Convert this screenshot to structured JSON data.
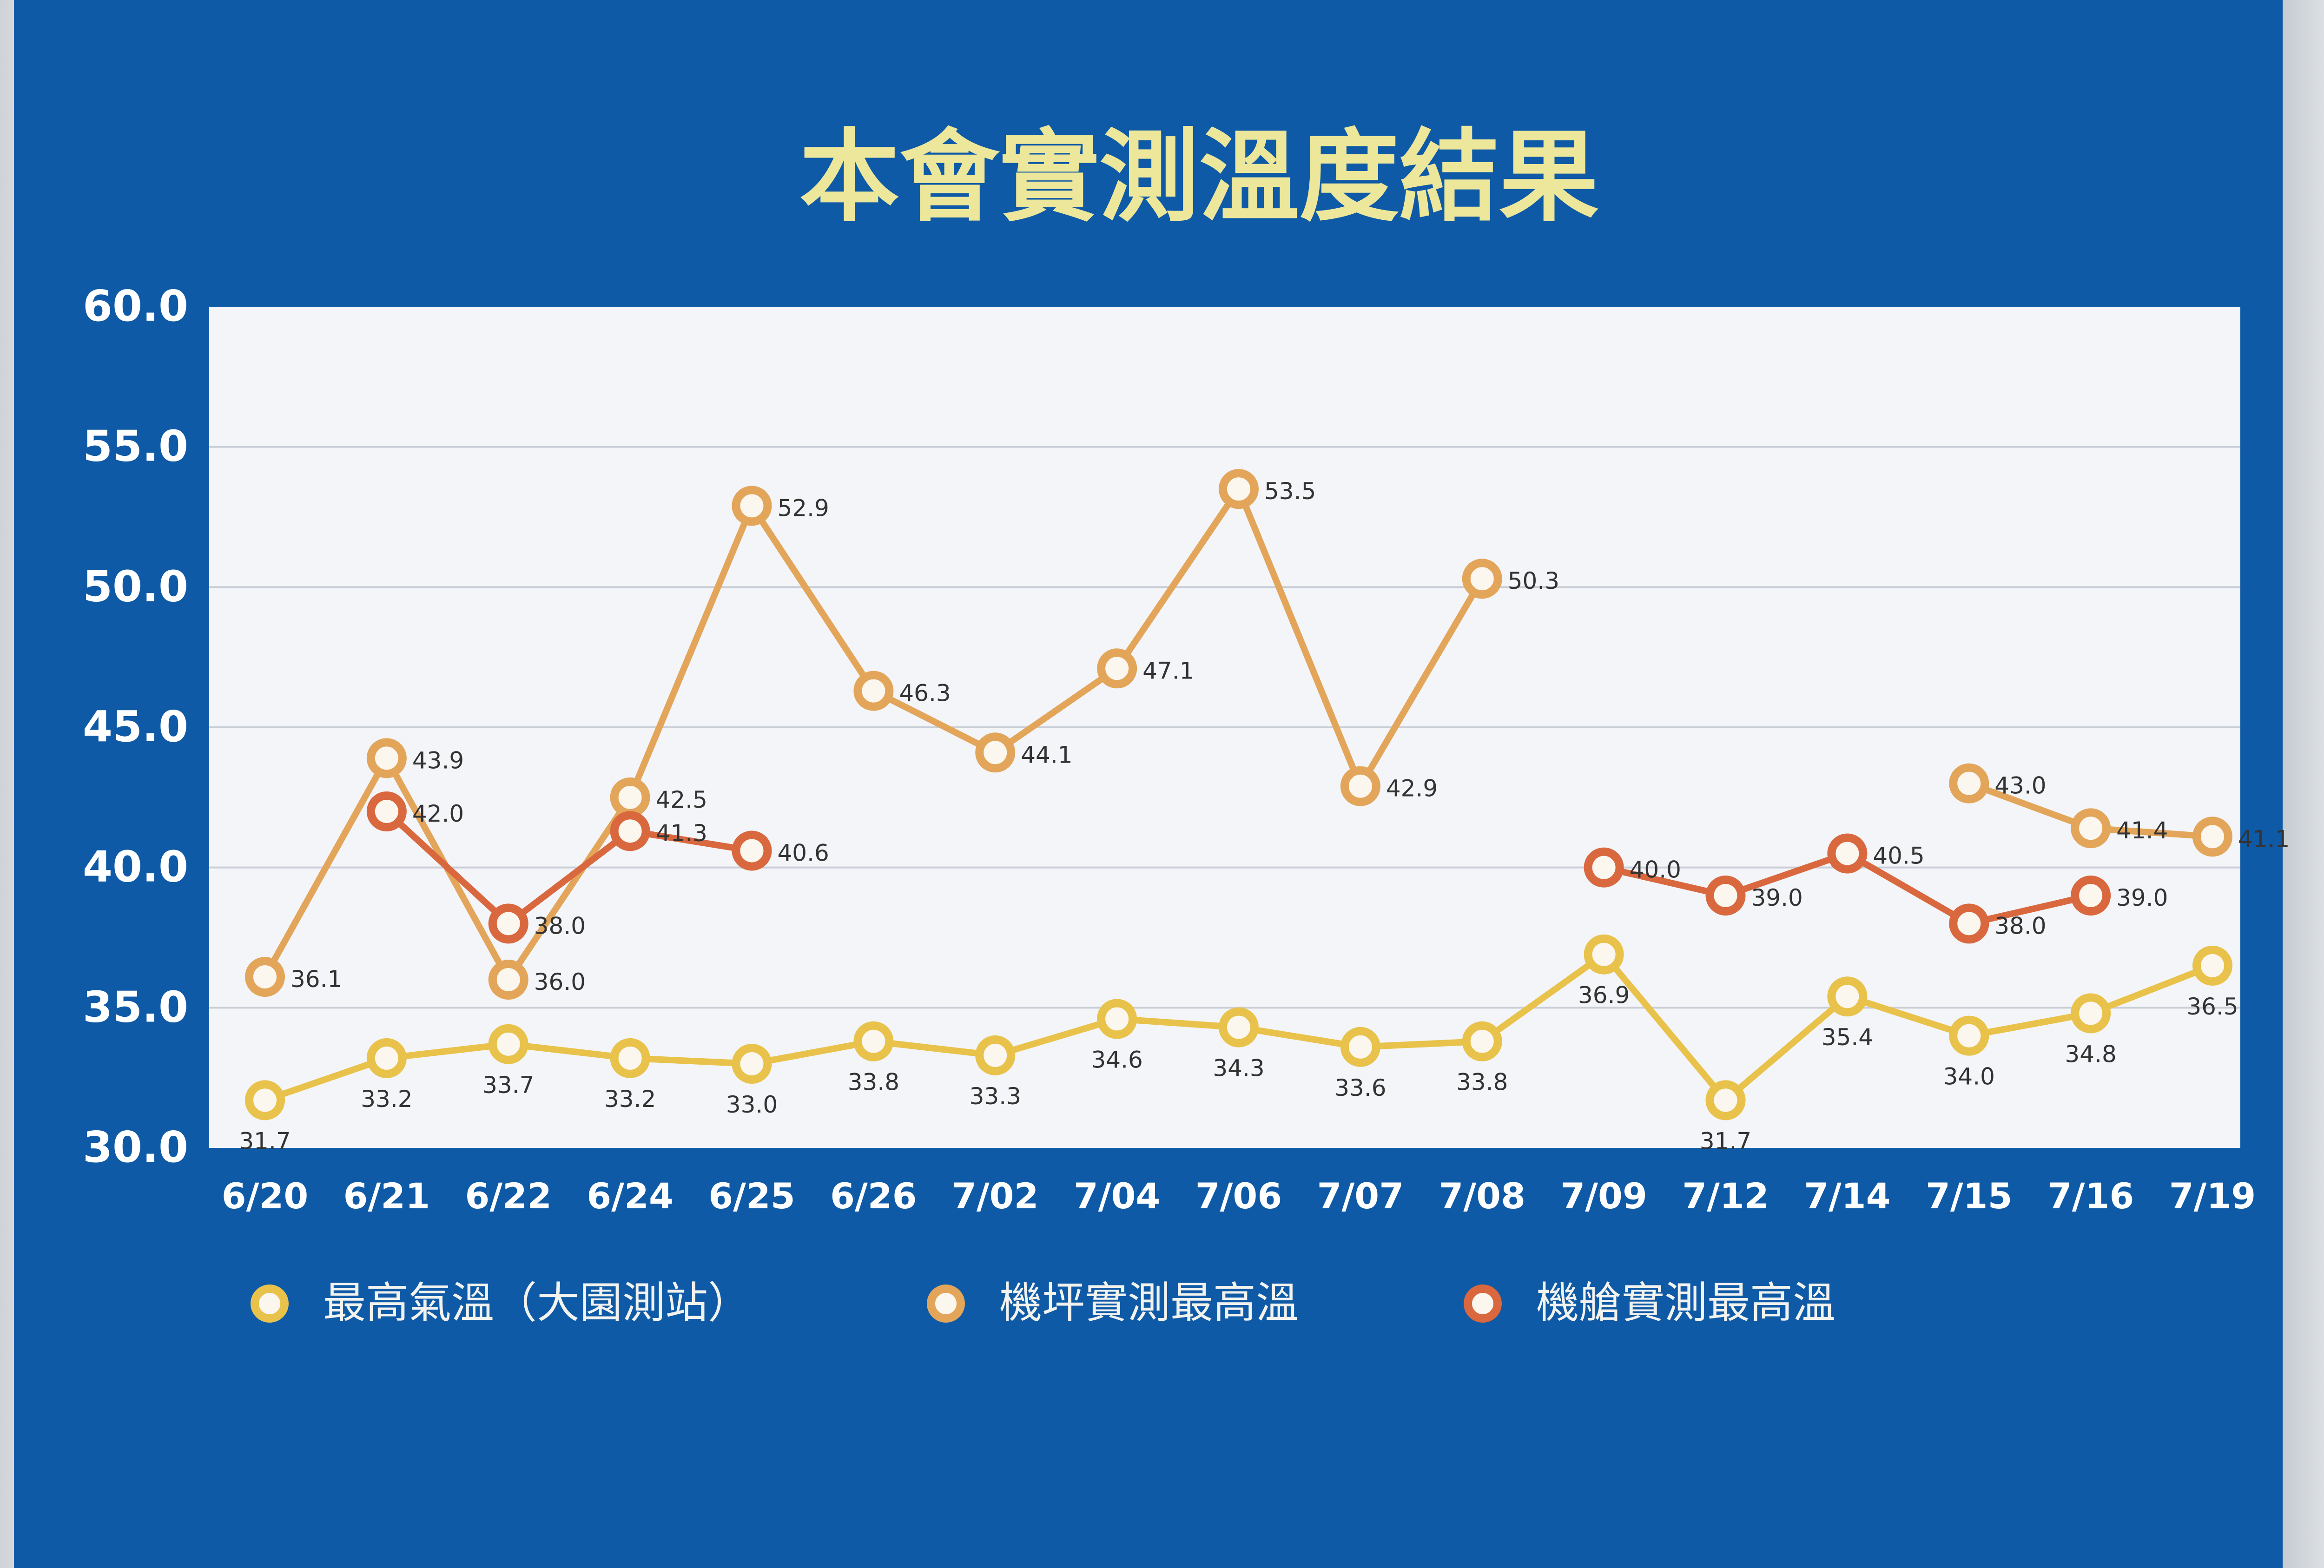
{
  "chart_data": {
    "type": "line",
    "title": "本會實測溫度結果",
    "ylim": [
      30,
      60
    ],
    "y_ticks": [
      "30.0",
      "35.0",
      "40.0",
      "45.0",
      "50.0",
      "55.0",
      "60.0"
    ],
    "categories": [
      "6/20",
      "6/21",
      "6/22",
      "6/24",
      "6/25",
      "6/26",
      "7/02",
      "7/04",
      "7/06",
      "7/07",
      "7/08",
      "7/09",
      "7/12",
      "7/14",
      "7/15",
      "7/16",
      "7/19"
    ],
    "grid": true,
    "legend_position": "bottom",
    "series": [
      {
        "name": "最高氣溫（大園測站）",
        "color": "#e8c24a",
        "labels_below": true,
        "values": [
          31.7,
          33.2,
          33.7,
          33.2,
          33.0,
          33.8,
          33.3,
          34.6,
          34.3,
          33.6,
          33.8,
          36.9,
          31.7,
          35.4,
          34.0,
          34.8,
          36.5
        ],
        "labels": [
          "31.7",
          "33.2",
          "33.7",
          "33.2",
          "33.0",
          "33.8",
          "33.3",
          "34.6",
          "34.3",
          "33.6",
          "33.8",
          "36.9",
          "31.7",
          "35.4",
          "34.0",
          "34.8",
          "36.5"
        ]
      },
      {
        "name": "機坪實測最高溫",
        "color": "#e3a55a",
        "labels_below": false,
        "values": [
          36.1,
          43.9,
          36.0,
          42.5,
          52.9,
          46.3,
          44.1,
          47.1,
          53.5,
          42.9,
          50.3,
          null,
          null,
          null,
          43.0,
          41.4,
          41.1
        ],
        "labels": [
          "36.1",
          "43.9",
          "36.0",
          "42.5",
          "52.9",
          "46.3",
          "44.1",
          "47.1",
          "53.5",
          "42.9",
          "50.3",
          null,
          null,
          null,
          "43.0",
          "41.4",
          "41.1"
        ]
      },
      {
        "name": "機艙實測最高溫",
        "color": "#d9683f",
        "labels_below": false,
        "values": [
          null,
          42.0,
          38.0,
          41.3,
          40.6,
          null,
          null,
          null,
          null,
          null,
          null,
          40.0,
          39.0,
          40.5,
          38.0,
          39.0,
          null
        ],
        "labels": [
          null,
          "42.0",
          "38.0",
          "41.3",
          "40.6",
          null,
          null,
          null,
          null,
          null,
          null,
          "40.0",
          "39.0",
          "40.5",
          "38.0",
          "39.0",
          null
        ]
      }
    ]
  }
}
